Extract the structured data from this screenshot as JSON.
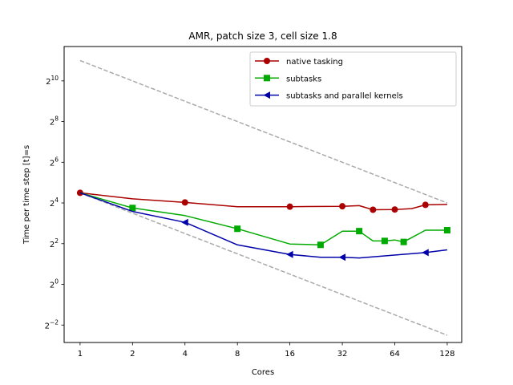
{
  "chart_data": {
    "type": "line",
    "title": "AMR, patch size 3, cell size 1.8",
    "xlabel": "Cores",
    "ylabel": "Time per time step [t]=s",
    "x_scale": "log2",
    "y_scale": "log2",
    "xlim": [
      0.81,
      155
    ],
    "ylim": [
      0.138,
      3300
    ],
    "xticks": [
      {
        "value": 1,
        "label": "1"
      },
      {
        "value": 2,
        "label": "2"
      },
      {
        "value": 4,
        "label": "4"
      },
      {
        "value": 8,
        "label": "8"
      },
      {
        "value": 16,
        "label": "16"
      },
      {
        "value": 32,
        "label": "32"
      },
      {
        "value": 64,
        "label": "64"
      },
      {
        "value": 128,
        "label": "128"
      }
    ],
    "yticks": [
      {
        "value": 0.25,
        "base": "2",
        "exp": "−2"
      },
      {
        "value": 1,
        "base": "2",
        "exp": "0"
      },
      {
        "value": 4,
        "base": "2",
        "exp": "2"
      },
      {
        "value": 16,
        "base": "2",
        "exp": "4"
      },
      {
        "value": 64,
        "base": "2",
        "exp": "6"
      },
      {
        "value": 256,
        "base": "2",
        "exp": "8"
      },
      {
        "value": 1024,
        "base": "2",
        "exp": "10"
      }
    ],
    "grid": false,
    "legend_position": "top-right",
    "series": [
      {
        "name": "native tasking",
        "color": "#aa0000",
        "marker": "circle",
        "x": [
          1,
          2,
          4,
          8,
          16,
          32,
          40,
          48,
          64,
          80,
          96,
          128
        ],
        "y": [
          22.6,
          18.4,
          16.3,
          14.1,
          14.1,
          14.3,
          14.6,
          12.7,
          12.8,
          13.2,
          15.0,
          15.2
        ],
        "marker_x": [
          1,
          4,
          16,
          32,
          48,
          64,
          96
        ],
        "marker_y": [
          22.6,
          16.3,
          14.1,
          14.3,
          12.7,
          12.8,
          15.0
        ]
      },
      {
        "name": " subtasks",
        "color": "#00aa00",
        "marker": "square",
        "x": [
          1,
          2,
          4,
          8,
          16,
          24,
          32,
          40,
          48,
          56,
          64,
          72,
          96,
          128
        ],
        "y": [
          22.6,
          13.5,
          10.4,
          6.64,
          3.95,
          3.84,
          6.13,
          6.13,
          4.39,
          4.39,
          4.53,
          4.24,
          6.32,
          6.32
        ],
        "marker_x": [
          2,
          8,
          24,
          40,
          56,
          72,
          128
        ],
        "marker_y": [
          13.5,
          6.64,
          3.84,
          6.13,
          4.39,
          4.24,
          6.32
        ]
      },
      {
        "name": " subtasks and parallel kernels",
        "color": "#0000aa",
        "marker": "triangle-left",
        "x": [
          1,
          2,
          4,
          8,
          16,
          24,
          32,
          40,
          96,
          128
        ],
        "y": [
          22.6,
          12.0,
          8.26,
          3.84,
          2.77,
          2.52,
          2.52,
          2.46,
          2.95,
          3.24
        ],
        "marker_x": [
          4,
          16,
          32,
          96
        ],
        "marker_y": [
          8.26,
          2.77,
          2.52,
          2.95
        ]
      }
    ],
    "reference_lines": [
      {
        "color": "#aaaaaa",
        "style": "dashed",
        "x": [
          1,
          128
        ],
        "y": [
          2048,
          16
        ]
      },
      {
        "color": "#aaaaaa",
        "style": "dashed",
        "x": [
          1,
          128
        ],
        "y": [
          22.6,
          0.177
        ]
      }
    ]
  }
}
